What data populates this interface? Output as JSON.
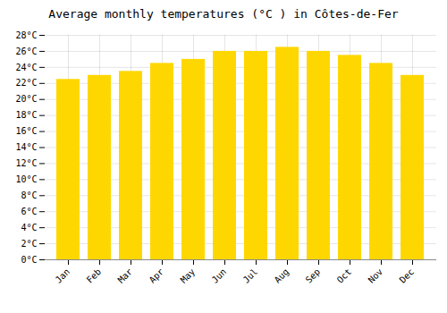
{
  "chart_data": {
    "type": "bar",
    "title": "Average monthly temperatures (°C ) in Côtes-de-Fer",
    "categories": [
      "Jan",
      "Feb",
      "Mar",
      "Apr",
      "May",
      "Jun",
      "Jul",
      "Aug",
      "Sep",
      "Oct",
      "Nov",
      "Dec"
    ],
    "values": [
      22.5,
      23.0,
      23.5,
      24.5,
      25.0,
      26.0,
      26.0,
      26.5,
      26.0,
      25.5,
      24.5,
      23.0
    ],
    "color": "#FFD700",
    "ylim": [
      0,
      28
    ],
    "yticks": [
      {
        "value": 0,
        "label": "0°C"
      },
      {
        "value": 2,
        "label": "2°C"
      },
      {
        "value": 4,
        "label": "4°C"
      },
      {
        "value": 6,
        "label": "6°C"
      },
      {
        "value": 8,
        "label": "8°C"
      },
      {
        "value": 10,
        "label": "10°C"
      },
      {
        "value": 12,
        "label": "12°C"
      },
      {
        "value": 14,
        "label": "14°C"
      },
      {
        "value": 16,
        "label": "16°C"
      },
      {
        "value": 18,
        "label": "18°C"
      },
      {
        "value": 20,
        "label": "20°C"
      },
      {
        "value": 22,
        "label": "22°C"
      },
      {
        "value": 24,
        "label": "24°C"
      },
      {
        "value": 26,
        "label": "26°C"
      },
      {
        "value": 28,
        "label": "28°C"
      }
    ],
    "grid": true
  }
}
